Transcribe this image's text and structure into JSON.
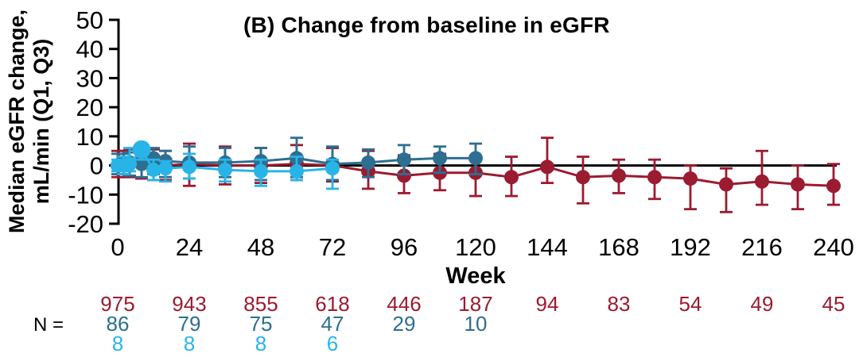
{
  "title": "(B) Change from baseline in eGFR",
  "y_axis_label": {
    "line1": "Median eGFR change,",
    "line2": "mL/min (Q1, Q3)"
  },
  "x_axis_label": "Week",
  "n_label": "N =",
  "chart_data": {
    "type": "line",
    "title": "(B) Change from baseline in eGFR",
    "xlabel": "Week",
    "ylabel": "Median eGFR change, mL/min (Q1, Q3)",
    "xlim": [
      0,
      240
    ],
    "ylim": [
      -20,
      50
    ],
    "x_ticks": [
      0,
      24,
      48,
      72,
      96,
      120,
      144,
      168,
      192,
      216,
      240
    ],
    "y_ticks": [
      50,
      40,
      30,
      20,
      10,
      0,
      -10,
      -20
    ],
    "grid": false,
    "legend": "none",
    "zero_line": true,
    "error_bars": "Q1-Q3 interquartile range",
    "n_row_label": "N =",
    "series": [
      {
        "name": "maroon-series",
        "color": "#9B1B30",
        "marker": "circle",
        "x": [
          0,
          2,
          4,
          8,
          12,
          16,
          24,
          36,
          48,
          60,
          72,
          84,
          96,
          108,
          120,
          132,
          144,
          156,
          168,
          180,
          192,
          204,
          216,
          228,
          240
        ],
        "y": [
          0,
          0.5,
          0.5,
          1,
          0.5,
          0,
          0.5,
          0,
          0,
          0.5,
          0,
          -2,
          -3.5,
          -2.5,
          -2.5,
          -4,
          -0.5,
          -4,
          -3.5,
          -4,
          -4.5,
          -6.5,
          -5.5,
          -6.5,
          -7
        ],
        "q1": [
          -4,
          -4,
          -4,
          -4.5,
          -5,
          -5,
          -7,
          -6.5,
          -6,
          -5,
          -5.5,
          -8,
          -9.5,
          -8.5,
          -10.5,
          -10.5,
          -6,
          -13,
          -9.5,
          -11.5,
          -15,
          -16,
          -13.5,
          -15,
          -13.5
        ],
        "q3": [
          5,
          5,
          5.5,
          6,
          5.5,
          5,
          7.5,
          6.5,
          6,
          7,
          6,
          5,
          3.5,
          4,
          2.5,
          3,
          9.5,
          3,
          2,
          2,
          0,
          -1,
          5,
          0,
          0.5
        ],
        "n": [
          975,
          943,
          855,
          618,
          446,
          187,
          94,
          83,
          54,
          49,
          45
        ]
      },
      {
        "name": "steel-blue-series",
        "color": "#2D6E91",
        "marker": "circle",
        "x": [
          0,
          2,
          4,
          8,
          12,
          16,
          24,
          36,
          48,
          60,
          72,
          84,
          96,
          108,
          120
        ],
        "y": [
          0,
          0.5,
          1,
          0.5,
          2.5,
          1.5,
          1,
          1,
          1.5,
          2.5,
          0.5,
          1,
          2,
          2.5,
          2.5
        ],
        "q1": [
          -3,
          -3,
          -3.5,
          -4,
          -3,
          -4,
          -4.5,
          -4,
          -5,
          -4,
          -5,
          -4,
          -3,
          -2.5,
          -3
        ],
        "q3": [
          4,
          4,
          4.5,
          5,
          6,
          5,
          6.5,
          6,
          6,
          9.5,
          6.5,
          5.5,
          7,
          6.5,
          7.5
        ],
        "n": [
          86,
          79,
          75,
          47,
          29,
          10
        ]
      },
      {
        "name": "light-blue-series",
        "color": "#29B4E8",
        "marker": "circle",
        "x": [
          0,
          2,
          4,
          8,
          12,
          16,
          24,
          36,
          48,
          60,
          72
        ],
        "y": [
          0,
          0,
          0.5,
          5.5,
          -1.5,
          -1,
          -0.5,
          -1.5,
          -2,
          -2,
          -1
        ],
        "q1": [
          -2,
          -3,
          -2,
          2,
          -5,
          -5.5,
          -4.5,
          -5.5,
          -7,
          -5,
          -8
        ],
        "q3": [
          2,
          3,
          6,
          7.5,
          2,
          1.5,
          4,
          2,
          2,
          3,
          2
        ],
        "n": [
          8,
          8,
          8,
          6
        ]
      }
    ]
  }
}
